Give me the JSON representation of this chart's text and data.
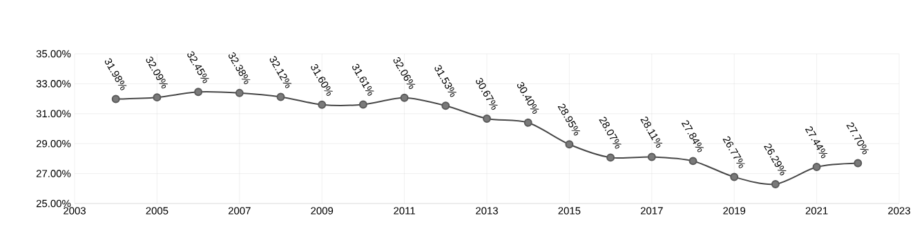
{
  "chart_data": {
    "type": "line",
    "x": [
      2004,
      2005,
      2006,
      2007,
      2008,
      2009,
      2010,
      2011,
      2012,
      2013,
      2014,
      2015,
      2016,
      2017,
      2018,
      2019,
      2020,
      2021,
      2022
    ],
    "values": [
      31.98,
      32.09,
      32.45,
      32.38,
      32.12,
      31.6,
      31.61,
      32.06,
      31.53,
      30.67,
      30.4,
      28.95,
      28.07,
      28.11,
      27.84,
      26.77,
      26.29,
      27.44,
      27.7
    ],
    "value_labels": [
      "31.98%",
      "32.09%",
      "32.45%",
      "32.38%",
      "32.12%",
      "31.60%",
      "31.61%",
      "32.06%",
      "31.53%",
      "30.67%",
      "30.40%",
      "28.95%",
      "28.07%",
      "28.11%",
      "27.84%",
      "26.77%",
      "26.29%",
      "27.44%",
      "27.70%"
    ],
    "color": "#595959",
    "marker": "circle",
    "line_style": "solid",
    "grid": true,
    "xlim": [
      2003,
      2023
    ],
    "xticks": [
      2003,
      2005,
      2007,
      2009,
      2011,
      2013,
      2015,
      2017,
      2019,
      2021,
      2023
    ],
    "ylim": [
      25,
      35
    ],
    "yticks": [
      {
        "value": 25,
        "label": "25.00%"
      },
      {
        "value": 27,
        "label": "27.00%"
      },
      {
        "value": 29,
        "label": "29.00%"
      },
      {
        "value": 31,
        "label": "31.00%"
      },
      {
        "value": 33,
        "label": "33.00%"
      },
      {
        "value": 35,
        "label": "35.00%"
      }
    ]
  }
}
